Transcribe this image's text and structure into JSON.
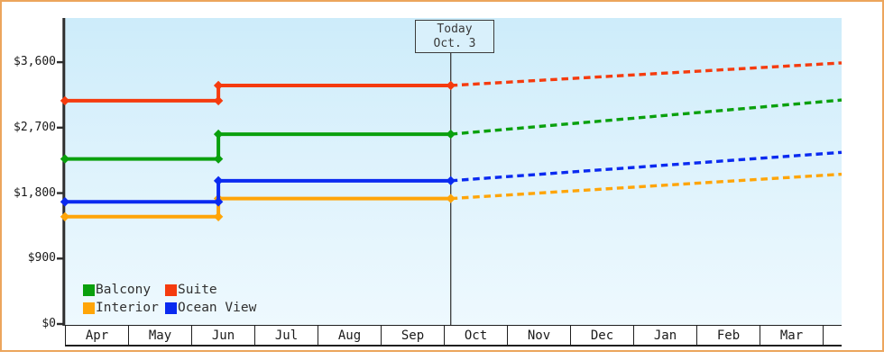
{
  "frame": {
    "border_color": "#eca55c"
  },
  "today_label": {
    "line1": "Today",
    "line2": "Oct. 3"
  },
  "chart_data": {
    "type": "line",
    "title": "",
    "xlabel": "",
    "ylabel": "",
    "grid": false,
    "legend_position": "bottom-left-inside",
    "x_axis": {
      "months": [
        "Apr",
        "May",
        "Jun",
        "Jul",
        "Aug",
        "Sep",
        "Oct",
        "Nov",
        "Dec",
        "Jan",
        "Feb",
        "Mar"
      ]
    },
    "y_axis": {
      "tick_labels": [
        "$0",
        "$900",
        "$1,800",
        "$2,700",
        "$3,600"
      ],
      "tick_values": [
        0,
        900,
        1800,
        2700,
        3600
      ],
      "ylim": [
        0,
        4200
      ]
    },
    "today": {
      "month_position": 6.11,
      "annotation": "Today Oct. 3"
    },
    "series": [
      {
        "name": "Interior",
        "color": "#ffa508",
        "history": [
          [
            0,
            1475
          ],
          [
            2.43,
            1475
          ],
          [
            2.43,
            1725
          ],
          [
            6.11,
            1725
          ]
        ],
        "projection": [
          [
            6.11,
            1725
          ],
          [
            12.3,
            2060
          ]
        ]
      },
      {
        "name": "Ocean View",
        "color": "#0a2af0",
        "history": [
          [
            0,
            1680
          ],
          [
            2.43,
            1680
          ],
          [
            2.43,
            1970
          ],
          [
            6.11,
            1970
          ]
        ],
        "projection": [
          [
            6.11,
            1970
          ],
          [
            12.3,
            2360
          ]
        ]
      },
      {
        "name": "Balcony",
        "color": "#0aa00d",
        "history": [
          [
            0,
            2270
          ],
          [
            2.43,
            2270
          ],
          [
            2.43,
            2610
          ],
          [
            6.11,
            2610
          ]
        ],
        "projection": [
          [
            6.11,
            2610
          ],
          [
            12.3,
            3080
          ]
        ]
      },
      {
        "name": "Suite",
        "color": "#f53b0e",
        "history": [
          [
            0,
            3070
          ],
          [
            2.43,
            3070
          ],
          [
            2.43,
            3280
          ],
          [
            6.11,
            3280
          ]
        ],
        "projection": [
          [
            6.11,
            3280
          ],
          [
            12.3,
            3590
          ]
        ]
      }
    ],
    "legend": [
      {
        "label": "Balcony",
        "color": "#0aa00d",
        "col": 0,
        "row": 0
      },
      {
        "label": "Suite",
        "color": "#f53b0e",
        "col": 1,
        "row": 0
      },
      {
        "label": "Interior",
        "color": "#ffa508",
        "col": 0,
        "row": 1
      },
      {
        "label": "Ocean View",
        "color": "#0a2af0",
        "col": 1,
        "row": 1
      }
    ]
  }
}
